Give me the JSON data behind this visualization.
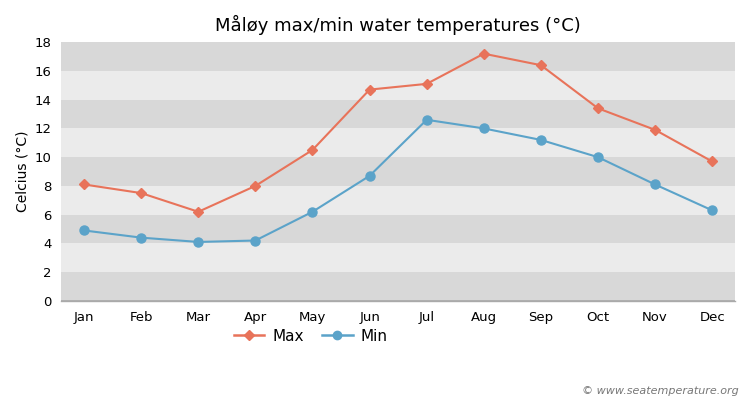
{
  "title": "Måløy max/min water temperatures (°C)",
  "months": [
    "Jan",
    "Feb",
    "Mar",
    "Apr",
    "May",
    "Jun",
    "Jul",
    "Aug",
    "Sep",
    "Oct",
    "Nov",
    "Dec"
  ],
  "max_temps": [
    8.1,
    7.5,
    6.2,
    8.0,
    10.5,
    14.7,
    15.1,
    17.2,
    16.4,
    13.4,
    11.9,
    9.7
  ],
  "min_temps": [
    4.9,
    4.4,
    4.1,
    4.2,
    6.2,
    8.7,
    12.6,
    12.0,
    11.2,
    10.0,
    8.1,
    6.3
  ],
  "max_color": "#E8735A",
  "min_color": "#5BA3C9",
  "ylabel": "Celcius (°C)",
  "ylim": [
    0,
    18
  ],
  "yticks": [
    0,
    2,
    4,
    6,
    8,
    10,
    12,
    14,
    16,
    18
  ],
  "fig_bg_color": "#ffffff",
  "band_light": "#ebebeb",
  "band_dark": "#d8d8d8",
  "legend_labels": [
    "Max",
    "Min"
  ],
  "watermark": "© www.seatemperature.org",
  "title_fontsize": 13,
  "label_fontsize": 10,
  "tick_fontsize": 9.5,
  "watermark_fontsize": 8
}
